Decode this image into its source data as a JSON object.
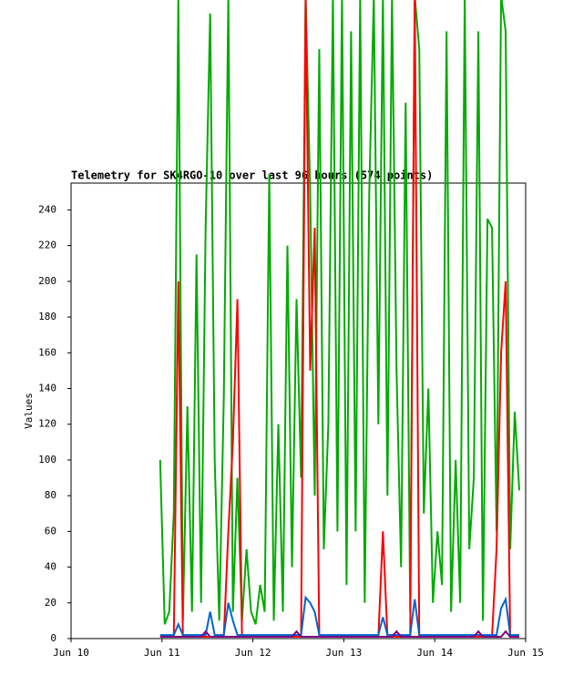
{
  "chart_data": {
    "type": "line",
    "title": "Telemetry for SK4RGO-10 over last 96 hours (574 points)",
    "y_label": "Values",
    "xlim": [
      0,
      5
    ],
    "xticks": [
      {
        "value": 0,
        "label": "Jun 10"
      },
      {
        "value": 1,
        "label": "Jun 11"
      },
      {
        "value": 2,
        "label": "Jun 12"
      },
      {
        "value": 3,
        "label": "Jun 13"
      },
      {
        "value": 4,
        "label": "Jun 14"
      },
      {
        "value": 5,
        "label": "Jun 15"
      }
    ],
    "ylim": [
      0,
      255
    ],
    "yticks": [
      0,
      20,
      40,
      60,
      80,
      100,
      120,
      140,
      160,
      180,
      200,
      220,
      240
    ],
    "x": [
      0.98,
      1.03,
      1.08,
      1.13,
      1.18,
      1.23,
      1.28,
      1.33,
      1.38,
      1.43,
      1.48,
      1.53,
      1.58,
      1.63,
      1.68,
      1.73,
      1.78,
      1.83,
      1.88,
      1.93,
      1.98,
      2.03,
      2.08,
      2.13,
      2.18,
      2.23,
      2.28,
      2.33,
      2.38,
      2.43,
      2.48,
      2.53,
      2.58,
      2.63,
      2.68,
      2.73,
      2.78,
      2.83,
      2.88,
      2.93,
      2.98,
      3.03,
      3.08,
      3.13,
      3.18,
      3.23,
      3.28,
      3.33,
      3.38,
      3.43,
      3.48,
      3.53,
      3.58,
      3.63,
      3.68,
      3.73,
      3.78,
      3.83,
      3.88,
      3.93,
      3.98,
      4.03,
      4.08,
      4.13,
      4.18,
      4.23,
      4.28,
      4.33,
      4.38,
      4.43,
      4.48,
      4.53,
      4.58,
      4.63,
      4.68,
      4.73,
      4.78,
      4.83,
      4.88,
      4.93
    ],
    "series": [
      {
        "color": "#00aa00",
        "values": [
          100,
          8,
          15,
          70,
          360,
          10,
          130,
          15,
          215,
          20,
          230,
          350,
          100,
          10,
          135,
          360,
          15,
          90,
          10,
          50,
          15,
          8,
          30,
          15,
          260,
          10,
          120,
          15,
          220,
          40,
          190,
          90,
          360,
          250,
          80,
          330,
          50,
          120,
          360,
          60,
          360,
          30,
          340,
          60,
          360,
          20,
          250,
          360,
          120,
          360,
          80,
          360,
          150,
          40,
          300,
          15,
          360,
          330,
          70,
          140,
          20,
          60,
          30,
          340,
          15,
          100,
          20,
          360,
          50,
          90,
          340,
          10,
          235,
          230,
          60,
          360,
          340,
          50,
          127,
          83
        ]
      },
      {
        "color": "#ff0000",
        "values": [
          1,
          1,
          1,
          1,
          200,
          1,
          1,
          1,
          1,
          1,
          1,
          1,
          1,
          1,
          1,
          60,
          110,
          190,
          1,
          1,
          1,
          1,
          1,
          1,
          1,
          1,
          1,
          1,
          1,
          1,
          1,
          1,
          360,
          150,
          230,
          1,
          1,
          1,
          1,
          1,
          1,
          1,
          1,
          1,
          1,
          1,
          1,
          1,
          1,
          60,
          1,
          1,
          1,
          1,
          1,
          1,
          360,
          1,
          1,
          1,
          1,
          1,
          1,
          1,
          1,
          1,
          1,
          1,
          1,
          1,
          1,
          1,
          1,
          1,
          50,
          160,
          200,
          1,
          1,
          1
        ]
      },
      {
        "color": "#0066cc",
        "values": [
          2,
          2,
          2,
          2,
          8,
          2,
          2,
          2,
          2,
          2,
          2,
          15,
          2,
          2,
          2,
          20,
          10,
          2,
          2,
          2,
          2,
          2,
          2,
          2,
          2,
          2,
          2,
          2,
          2,
          2,
          2,
          2,
          23,
          20,
          15,
          2,
          2,
          2,
          2,
          2,
          2,
          2,
          2,
          2,
          2,
          2,
          2,
          2,
          2,
          12,
          2,
          2,
          2,
          2,
          2,
          2,
          22,
          2,
          2,
          2,
          2,
          2,
          2,
          2,
          2,
          2,
          2,
          2,
          2,
          2,
          2,
          2,
          2,
          2,
          2,
          17,
          22,
          2,
          2,
          2
        ]
      },
      {
        "color": "#800080",
        "values": [
          1,
          1,
          1,
          1,
          1,
          1,
          1,
          1,
          1,
          1,
          4,
          1,
          1,
          1,
          1,
          1,
          1,
          1,
          1,
          1,
          1,
          1,
          1,
          1,
          1,
          1,
          1,
          1,
          1,
          1,
          4,
          1,
          1,
          1,
          1,
          1,
          1,
          1,
          1,
          1,
          1,
          1,
          1,
          1,
          1,
          1,
          1,
          1,
          1,
          1,
          1,
          1,
          4,
          1,
          1,
          1,
          1,
          1,
          1,
          1,
          1,
          1,
          1,
          1,
          1,
          1,
          1,
          1,
          1,
          1,
          4,
          1,
          1,
          1,
          1,
          1,
          4,
          1,
          1,
          1
        ]
      }
    ]
  }
}
